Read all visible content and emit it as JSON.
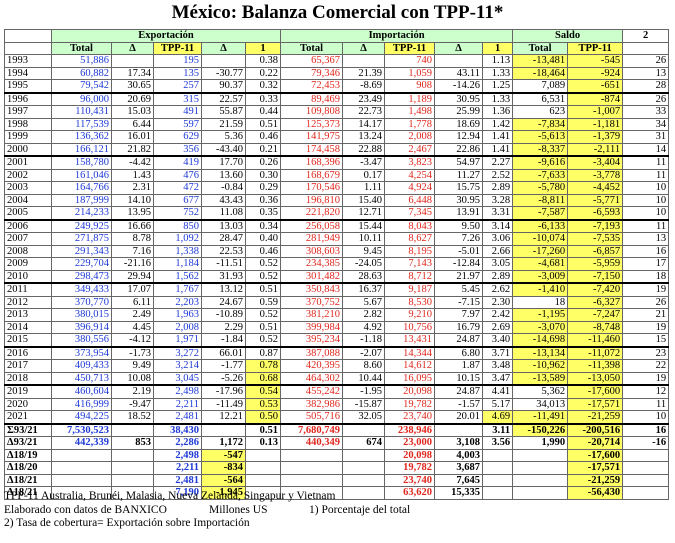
{
  "title": "México: Balanza Comercial con TPP-11*",
  "groups": {
    "exp": "Exportación",
    "imp": "Importación",
    "saldo": "Saldo",
    "col2": "2"
  },
  "subheaders": [
    "Total",
    "Δ",
    "TPP-11",
    "Δ",
    "1",
    "Total",
    "Δ",
    "TPP-11",
    "Δ",
    "1",
    "Total",
    "TPP-11"
  ],
  "rows": [
    [
      "1993",
      "51,886",
      "",
      "195",
      "",
      "0.38",
      "65,367",
      "",
      "740",
      "",
      "1.13",
      "-13,481",
      "-545",
      "26"
    ],
    [
      "1994",
      "60,882",
      "17.34",
      "135",
      "-30.77",
      "0.22",
      "79,346",
      "21.39",
      "1,059",
      "43.11",
      "1.33",
      "-18,464",
      "-924",
      "13"
    ],
    [
      "1995",
      "79,542",
      "30.65",
      "257",
      "90.37",
      "0.32",
      "72,453",
      "-8.69",
      "908",
      "-14.26",
      "1.25",
      "7,089",
      "-651",
      "28"
    ],
    [
      "1996",
      "96,000",
      "20.69",
      "315",
      "22.57",
      "0.33",
      "89,469",
      "23.49",
      "1,189",
      "30.95",
      "1.33",
      "6,531",
      "-874",
      "26"
    ],
    [
      "1997",
      "110,431",
      "15.03",
      "491",
      "55.87",
      "0.44",
      "109,808",
      "22.73",
      "1,498",
      "25.99",
      "1.36",
      "623",
      "-1,007",
      "33"
    ],
    [
      "1998",
      "117,539",
      "6.44",
      "597",
      "21.59",
      "0.51",
      "125,373",
      "14.17",
      "1,778",
      "18.69",
      "1.42",
      "-7,834",
      "-1,181",
      "34"
    ],
    [
      "1999",
      "136,362",
      "16.01",
      "629",
      "5.36",
      "0.46",
      "141,975",
      "13.24",
      "2,008",
      "12.94",
      "1.41",
      "-5,613",
      "-1,379",
      "31"
    ],
    [
      "2000",
      "166,121",
      "21.82",
      "356",
      "-43.40",
      "0.21",
      "174,458",
      "22.88",
      "2,467",
      "22.86",
      "1.41",
      "-8,337",
      "-2,111",
      "14"
    ],
    [
      "2001",
      "158,780",
      "-4.42",
      "419",
      "17.70",
      "0.26",
      "168,396",
      "-3.47",
      "3,823",
      "54.97",
      "2.27",
      "-9,616",
      "-3,404",
      "11"
    ],
    [
      "2002",
      "161,046",
      "1.43",
      "476",
      "13.60",
      "0.30",
      "168,679",
      "0.17",
      "4,254",
      "11.27",
      "2.52",
      "-7,633",
      "-3,778",
      "11"
    ],
    [
      "2003",
      "164,766",
      "2.31",
      "472",
      "-0.84",
      "0.29",
      "170,546",
      "1.11",
      "4,924",
      "15.75",
      "2.89",
      "-5,780",
      "-4,452",
      "10"
    ],
    [
      "2004",
      "187,999",
      "14.10",
      "677",
      "43.43",
      "0.36",
      "196,810",
      "15.40",
      "6,448",
      "30.95",
      "3.28",
      "-8,811",
      "-5,771",
      "10"
    ],
    [
      "2005",
      "214,233",
      "13.95",
      "752",
      "11.08",
      "0.35",
      "221,820",
      "12.71",
      "7,345",
      "13.91",
      "3.31",
      "-7,587",
      "-6,593",
      "10"
    ],
    [
      "2006",
      "249,925",
      "16.66",
      "850",
      "13.03",
      "0.34",
      "256,058",
      "15.44",
      "8,043",
      "9.50",
      "3.14",
      "-6,133",
      "-7,193",
      "11"
    ],
    [
      "2007",
      "271,875",
      "8.78",
      "1,092",
      "28.47",
      "0.40",
      "281,949",
      "10.11",
      "8,627",
      "7.26",
      "3.06",
      "-10,074",
      "-7,535",
      "13"
    ],
    [
      "2008",
      "291,343",
      "7.16",
      "1,338",
      "22.53",
      "0.46",
      "308,603",
      "9.45",
      "8,195",
      "-5.01",
      "2.66",
      "-17,260",
      "-6,857",
      "16"
    ],
    [
      "2009",
      "229,704",
      "-21.16",
      "1,184",
      "-11.51",
      "0.52",
      "234,385",
      "-24.05",
      "7,143",
      "-12.84",
      "3.05",
      "-4,681",
      "-5,959",
      "17"
    ],
    [
      "2010",
      "298,473",
      "29.94",
      "1,562",
      "31.93",
      "0.52",
      "301,482",
      "28.63",
      "8,712",
      "21.97",
      "2.89",
      "-3,009",
      "-7,150",
      "18"
    ],
    [
      "2011",
      "349,433",
      "17.07",
      "1,767",
      "13.12",
      "0.51",
      "350,843",
      "16.37",
      "9,187",
      "5.45",
      "2.62",
      "-1,410",
      "-7,420",
      "19"
    ],
    [
      "2012",
      "370,770",
      "6.11",
      "2,203",
      "24.67",
      "0.59",
      "370,752",
      "5.67",
      "8,530",
      "-7.15",
      "2.30",
      "18",
      "-6,327",
      "26"
    ],
    [
      "2013",
      "380,015",
      "2.49",
      "1,963",
      "-10.89",
      "0.52",
      "381,210",
      "2.82",
      "9,210",
      "7.97",
      "2.42",
      "-1,195",
      "-7,247",
      "21"
    ],
    [
      "2014",
      "396,914",
      "4.45",
      "2,008",
      "2.29",
      "0.51",
      "399,984",
      "4.92",
      "10,756",
      "16.79",
      "2.69",
      "-3,070",
      "-8,748",
      "19"
    ],
    [
      "2015",
      "380,556",
      "-4.12",
      "1,971",
      "-1.84",
      "0.52",
      "395,234",
      "-1.18",
      "13,431",
      "24.87",
      "3.40",
      "-14,698",
      "-11,460",
      "15"
    ],
    [
      "2016",
      "373,954",
      "-1.73",
      "3,272",
      "66.01",
      "0.87",
      "387,088",
      "-2.07",
      "14,344",
      "6.80",
      "3.71",
      "-13,134",
      "-11,072",
      "23"
    ],
    [
      "2017",
      "409,433",
      "9.49",
      "3,214",
      "-1.77",
      "0.78",
      "420,395",
      "8.60",
      "14,612",
      "1.87",
      "3.48",
      "-10,962",
      "-11,398",
      "22"
    ],
    [
      "2018",
      "450,713",
      "10.08",
      "3,045",
      "-5.26",
      "0.68",
      "464,302",
      "10.44",
      "16,095",
      "10.15",
      "3.47",
      "-13,589",
      "-13,050",
      "19"
    ],
    [
      "2019",
      "460,604",
      "2.19",
      "2,498",
      "-17.96",
      "0.54",
      "455,242",
      "-1.95",
      "20,098",
      "24.87",
      "4.41",
      "5,362",
      "-17,600",
      "12"
    ],
    [
      "2020",
      "416,999",
      "-9.47",
      "2,211",
      "-11.49",
      "0.53",
      "382,986",
      "-15.87",
      "19,782",
      "-1.57",
      "5.17",
      "34,013",
      "-17,571",
      "11"
    ],
    [
      "2021",
      "494,225",
      "18.52",
      "2,481",
      "12.21",
      "0.50",
      "505,716",
      "32.05",
      "23,740",
      "20.01",
      "4.69",
      "-11,491",
      "-21,259",
      "10"
    ],
    [
      "Σ93/21",
      "7,530,523",
      "",
      "38,430",
      "",
      "0.51",
      "7,680,749",
      "",
      "238,946",
      "",
      "3.11",
      "-150,226",
      "-200,516",
      "16"
    ],
    [
      "Δ93/21",
      "442,339",
      "853",
      "2,286",
      "1,172",
      "0.13",
      "440,349",
      "674",
      "23,000",
      "3,108",
      "3.56",
      "1,990",
      "-20,714",
      "-16"
    ],
    [
      "Δ18/19",
      "",
      "",
      "2,498",
      "-547",
      "",
      "",
      "",
      "20,098",
      "4,003",
      "",
      "",
      "-17,600",
      ""
    ],
    [
      "Δ18/20",
      "",
      "",
      "2,211",
      "-834",
      "",
      "",
      "",
      "19,782",
      "3,687",
      "",
      "",
      "-17,571",
      ""
    ],
    [
      "Δ18/21",
      "",
      "",
      "2,481",
      "-564",
      "",
      "",
      "",
      "23,740",
      "7,645",
      "",
      "",
      "-21,259",
      ""
    ],
    [
      "Δ18/21",
      "",
      "",
      "7,190",
      "-1,945",
      "",
      "",
      "",
      "63,620",
      "15,335",
      "",
      "",
      "-56,430",
      ""
    ]
  ],
  "notes": {
    "line1": "TPP-11 Australia, Brunéi, Malasia, Nueva Zelanda, Singapur y Vietnam",
    "line2a": "Elaborado con datos de BANXICO",
    "line2b": "Millones US",
    "line2c": "1) Porcentaje del total",
    "line3": "2) Tasa de cobertura= Exportación sobre Importación"
  }
}
